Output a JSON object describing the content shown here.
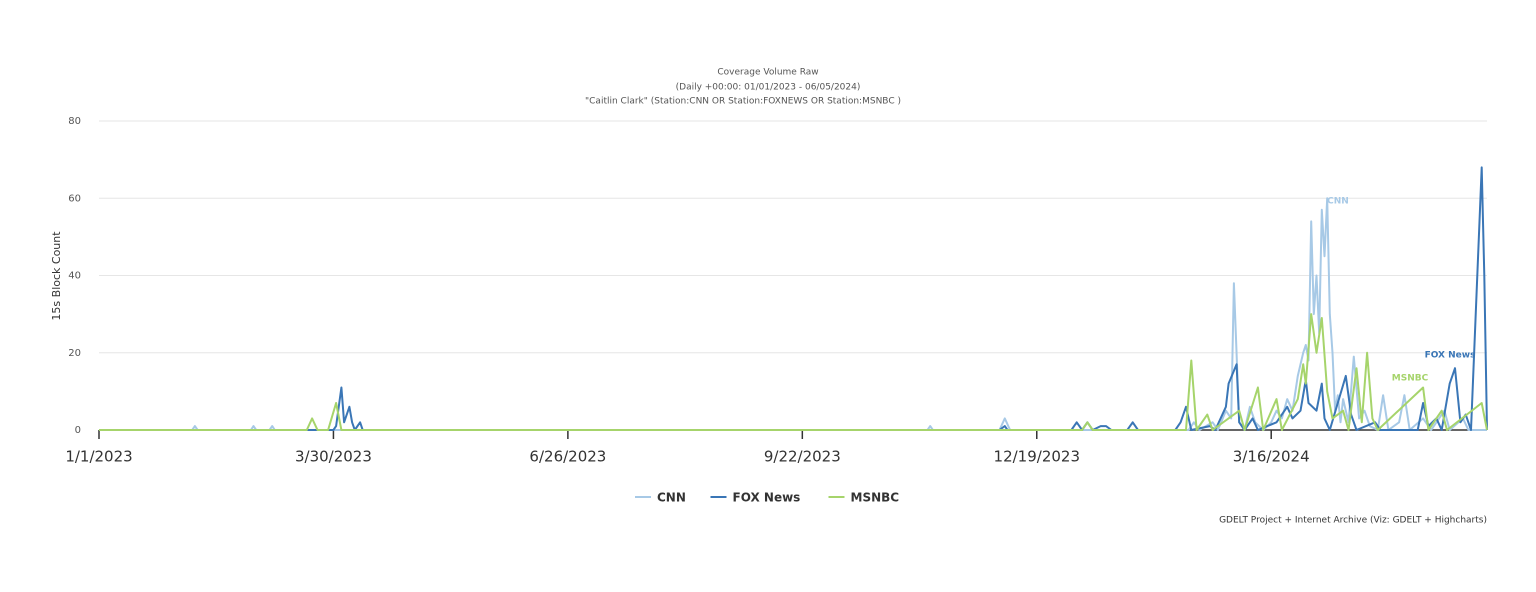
{
  "chart_data": {
    "type": "line",
    "title": "Coverage Volume Raw",
    "subtitle": "(Daily +00:00: 01/01/2023 - 06/05/2024)",
    "query": "\"Caitlin Clark\" (Station:CNN OR Station:FOXNEWS OR Station:MSNBC )",
    "y_label": "15s Block Count",
    "credits": "GDELT Project + Internet Archive (Viz: GDELT + Highcharts)",
    "xlim": [
      "2023-01-01",
      "2024-06-05"
    ],
    "xticks": [
      {
        "value": "2023-01-01",
        "label": "1/1/2023"
      },
      {
        "value": "2023-03-30",
        "label": "3/30/2023"
      },
      {
        "value": "2023-06-26",
        "label": "6/26/2023"
      },
      {
        "value": "2023-09-22",
        "label": "9/22/2023"
      },
      {
        "value": "2023-12-19",
        "label": "12/19/2023"
      },
      {
        "value": "2024-03-16",
        "label": "3/16/2024"
      }
    ],
    "ylim": [
      0,
      80
    ],
    "yticks": [
      0,
      20,
      40,
      60,
      80
    ],
    "grid": true,
    "series": [
      {
        "name": "CNN",
        "color": "#a7c9e6",
        "x": [
          "2023-01-01",
          "2023-02-05",
          "2023-02-06",
          "2023-02-07",
          "2023-02-27",
          "2023-02-28",
          "2023-03-01",
          "2023-03-06",
          "2023-03-07",
          "2023-03-08",
          "2023-11-08",
          "2023-11-09",
          "2023-11-10",
          "2023-12-05",
          "2023-12-07",
          "2023-12-09",
          "2024-02-14",
          "2024-02-16",
          "2024-02-18",
          "2024-02-23",
          "2024-02-25",
          "2024-02-28",
          "2024-03-01",
          "2024-03-02",
          "2024-03-04",
          "2024-03-06",
          "2024-03-08",
          "2024-03-10",
          "2024-03-13",
          "2024-03-16",
          "2024-03-18",
          "2024-03-20",
          "2024-03-22",
          "2024-03-24",
          "2024-03-26",
          "2024-03-28",
          "2024-03-29",
          "2024-03-30",
          "2024-03-31",
          "2024-04-01",
          "2024-04-02",
          "2024-04-03",
          "2024-04-04",
          "2024-04-05",
          "2024-04-06",
          "2024-04-07",
          "2024-04-08",
          "2024-04-09",
          "2024-04-10",
          "2024-04-11",
          "2024-04-12",
          "2024-04-14",
          "2024-04-16",
          "2024-04-18",
          "2024-04-20",
          "2024-04-22",
          "2024-04-25",
          "2024-04-27",
          "2024-04-29",
          "2024-05-03",
          "2024-05-05",
          "2024-05-07",
          "2024-05-12",
          "2024-05-15",
          "2024-05-20",
          "2024-05-22",
          "2024-05-27",
          "2024-05-29",
          "2024-06-05"
        ],
        "values": [
          0,
          0,
          1,
          0,
          0,
          1,
          0,
          0,
          1,
          0,
          0,
          1,
          0,
          0,
          3,
          0,
          0,
          2,
          0,
          2,
          0,
          5,
          3,
          38,
          2,
          0,
          6,
          2,
          0,
          2,
          5,
          3,
          8,
          5,
          14,
          20,
          22,
          18,
          54,
          30,
          40,
          25,
          57,
          45,
          60,
          30,
          20,
          5,
          9,
          2,
          8,
          2,
          19,
          3,
          5,
          1,
          0,
          9,
          0,
          2,
          9,
          0,
          3,
          0,
          5,
          0,
          3,
          0,
          0
        ]
      },
      {
        "name": "FOX News",
        "color": "#3a76b6",
        "x": [
          "2023-01-01",
          "2023-03-30",
          "2023-03-31",
          "2023-04-02",
          "2023-04-03",
          "2023-04-05",
          "2023-04-06",
          "2023-04-07",
          "2023-04-09",
          "2023-04-10",
          "2023-12-05",
          "2023-12-07",
          "2023-12-08",
          "2024-01-01",
          "2024-01-03",
          "2024-01-05",
          "2024-01-07",
          "2024-01-09",
          "2024-01-12",
          "2024-01-14",
          "2024-01-16",
          "2024-01-22",
          "2024-01-24",
          "2024-01-26",
          "2024-02-09",
          "2024-02-11",
          "2024-02-13",
          "2024-02-15",
          "2024-02-22",
          "2024-02-24",
          "2024-02-28",
          "2024-02-29",
          "2024-03-03",
          "2024-03-04",
          "2024-03-06",
          "2024-03-09",
          "2024-03-11",
          "2024-03-18",
          "2024-03-22",
          "2024-03-24",
          "2024-03-27",
          "2024-03-29",
          "2024-03-30",
          "2024-04-02",
          "2024-04-04",
          "2024-04-05",
          "2024-04-07",
          "2024-04-13",
          "2024-04-15",
          "2024-04-17",
          "2024-04-24",
          "2024-04-26",
          "2024-05-10",
          "2024-05-12",
          "2024-05-14",
          "2024-05-17",
          "2024-05-19",
          "2024-05-22",
          "2024-05-24",
          "2024-05-26",
          "2024-05-28",
          "2024-05-30",
          "2024-06-03",
          "2024-06-04",
          "2024-06-05"
        ],
        "values": [
          0,
          0,
          1,
          11,
          2,
          6,
          2,
          0,
          2,
          0,
          0,
          1,
          0,
          0,
          2,
          0,
          2,
          0,
          1,
          1,
          0,
          0,
          2,
          0,
          0,
          2,
          6,
          0,
          1,
          0,
          6,
          12,
          17,
          2,
          0,
          3,
          0,
          2,
          6,
          3,
          5,
          13,
          7,
          5,
          12,
          3,
          0,
          14,
          4,
          0,
          2,
          0,
          0,
          7,
          1,
          3,
          0,
          12,
          16,
          2,
          4,
          0,
          68,
          40,
          0
        ]
      },
      {
        "name": "MSNBC",
        "color": "#a6d46b",
        "x": [
          "2023-01-01",
          "2023-03-20",
          "2023-03-22",
          "2023-03-24",
          "2023-03-28",
          "2023-03-31",
          "2023-04-02",
          "2024-01-05",
          "2024-01-07",
          "2024-01-09",
          "2024-02-13",
          "2024-02-15",
          "2024-02-17",
          "2024-02-21",
          "2024-02-23",
          "2024-03-04",
          "2024-03-06",
          "2024-03-11",
          "2024-03-13",
          "2024-03-18",
          "2024-03-20",
          "2024-03-26",
          "2024-03-28",
          "2024-03-29",
          "2024-03-31",
          "2024-04-02",
          "2024-04-04",
          "2024-04-06",
          "2024-04-08",
          "2024-04-12",
          "2024-04-14",
          "2024-04-17",
          "2024-04-19",
          "2024-04-21",
          "2024-04-23",
          "2024-04-25",
          "2024-05-12",
          "2024-05-14",
          "2024-05-19",
          "2024-05-21",
          "2024-06-03",
          "2024-06-05"
        ],
        "values": [
          0,
          0,
          3,
          0,
          0,
          7,
          0,
          0,
          2,
          0,
          0,
          18,
          0,
          4,
          0,
          5,
          0,
          11,
          0,
          8,
          0,
          8,
          17,
          12,
          30,
          20,
          29,
          10,
          3,
          5,
          0,
          16,
          2,
          20,
          3,
          0,
          11,
          0,
          5,
          0,
          7,
          0
        ]
      }
    ]
  }
}
